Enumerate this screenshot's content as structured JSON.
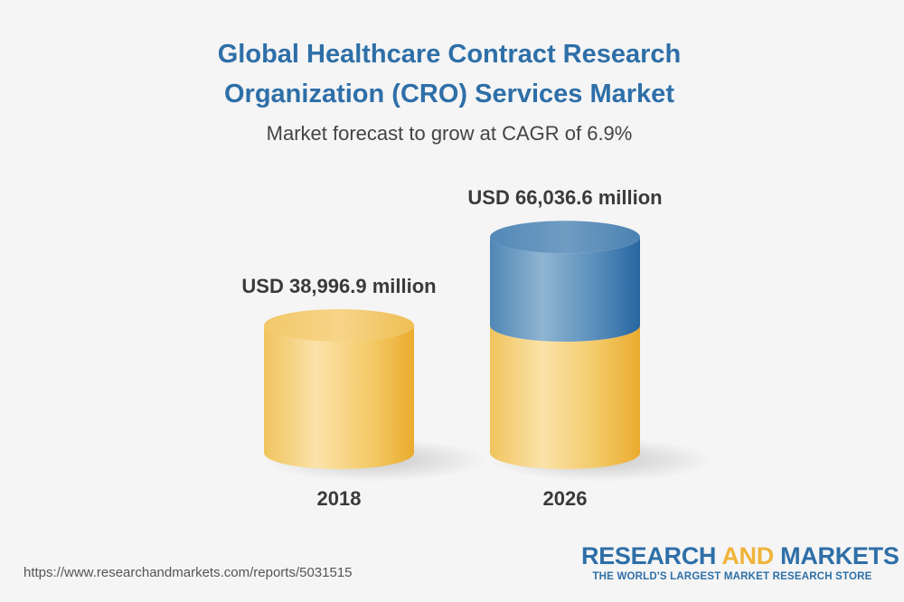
{
  "chart_data": {
    "type": "bar",
    "title_lines": [
      "Global Healthcare Contract Research",
      "Organization (CRO) Services Market"
    ],
    "subtitle": "Market forecast to grow at CAGR of 6.9%",
    "categories": [
      "2018",
      "2026"
    ],
    "values": [
      38996.9,
      66036.6
    ],
    "data_labels": [
      "USD 38,996.9 million",
      "USD 66,036.6 million"
    ],
    "unit": "USD million",
    "colors": {
      "base": "#f2bf4a",
      "growth": "#3c7db0",
      "title": "#2e6fa8"
    }
  },
  "footer": {
    "url": "https://www.researchandmarkets.com/reports/5031515",
    "brand_part1": "RESEARCH ",
    "brand_part2": "AND",
    "brand_part3": " MARKETS",
    "brand_tagline": "THE WORLD'S LARGEST MARKET RESEARCH STORE"
  }
}
